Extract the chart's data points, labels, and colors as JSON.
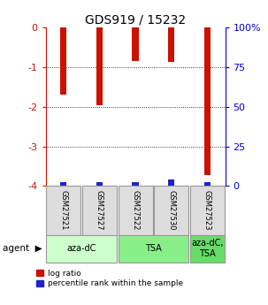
{
  "title": "GDS919 / 15232",
  "samples": [
    "GSM27521",
    "GSM27527",
    "GSM27522",
    "GSM27530",
    "GSM27523"
  ],
  "log_ratios": [
    -1.7,
    -1.95,
    -0.85,
    -0.87,
    -3.72
  ],
  "percentile_ranks_pct": [
    2.5,
    2.5,
    2.5,
    4.0,
    2.5
  ],
  "ylim": [
    -4,
    0
  ],
  "yticks_left": [
    0,
    -1,
    -2,
    -3,
    -4
  ],
  "yticks_right": [
    0,
    25,
    50,
    75,
    100
  ],
  "bar_width": 0.18,
  "blue_bar_width": 0.18,
  "red_color": "#cc1100",
  "blue_color": "#2222cc",
  "agent_groups": [
    {
      "label": "aza-dC",
      "indices": [
        0,
        1
      ],
      "color": "#ccffcc"
    },
    {
      "label": "TSA",
      "indices": [
        2,
        3
      ],
      "color": "#88ee88"
    },
    {
      "label": "aza-dC,\nTSA",
      "indices": [
        4
      ],
      "color": "#66dd66"
    }
  ],
  "legend_red": "log ratio",
  "legend_blue": "percentile rank within the sample",
  "sample_box_color": "#dddddd",
  "sample_box_edge": "#999999",
  "left_tick_color": "#cc1100",
  "right_tick_color": "#0000cc",
  "grid_color": "black",
  "grid_yticks": [
    -1,
    -2,
    -3
  ]
}
